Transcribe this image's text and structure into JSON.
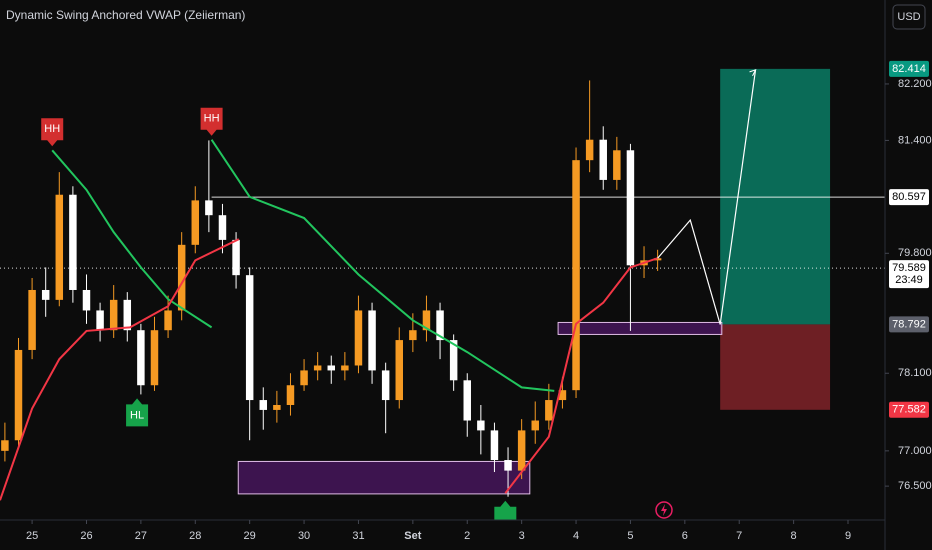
{
  "chart_data": {
    "type": "candlestick",
    "title": "Dynamic Swing Anchored VWAP (Zeiierman)",
    "currency": "USD",
    "xlim": [
      -0.59,
      15.68
    ],
    "ylim": [
      76.02,
      83.39
    ],
    "xticks": [
      {
        "value": 0,
        "label": "25"
      },
      {
        "value": 1,
        "label": "26"
      },
      {
        "value": 2,
        "label": "27"
      },
      {
        "value": 3,
        "label": "28"
      },
      {
        "value": 4,
        "label": "29"
      },
      {
        "value": 5,
        "label": "30"
      },
      {
        "value": 6,
        "label": "31"
      },
      {
        "value": 7,
        "label": "Set"
      },
      {
        "value": 8,
        "label": "2"
      },
      {
        "value": 9,
        "label": "3"
      },
      {
        "value": 10,
        "label": "4"
      },
      {
        "value": 11,
        "label": "5"
      },
      {
        "value": 12,
        "label": "6"
      },
      {
        "value": 13,
        "label": "7"
      },
      {
        "value": 14,
        "label": "8"
      },
      {
        "value": 15,
        "label": "9"
      }
    ],
    "yticks": [
      {
        "value": 82.2,
        "label": "82.200"
      },
      {
        "value": 81.4,
        "label": "81.400"
      },
      {
        "value": 79.8,
        "label": "79.800"
      },
      {
        "value": 78.1,
        "label": "78.100"
      },
      {
        "value": 77,
        "label": "77.000"
      },
      {
        "value": 76.5,
        "label": "76.500"
      }
    ],
    "up_color": "#f59a23",
    "down_color": "#ffffff",
    "candles": {
      "x": [
        -0.5,
        -0.25,
        0,
        0.25,
        0.5,
        0.75,
        1,
        1.25,
        1.5,
        1.75,
        2,
        2.25,
        2.5,
        2.75,
        3,
        3.25,
        3.5,
        3.75,
        4,
        4.25,
        4.5,
        4.75,
        5,
        5.25,
        5.5,
        5.75,
        6,
        6.25,
        6.5,
        6.75,
        7,
        7.25,
        7.5,
        7.75,
        8,
        8.25,
        8.5,
        8.75,
        9,
        9.25,
        9.5,
        9.75,
        10,
        10.25,
        10.5,
        10.75,
        11,
        11.25,
        11.5
      ],
      "open": [
        77.0,
        77.15,
        78.43,
        79.28,
        79.14,
        80.63,
        79.28,
        78.99,
        78.71,
        79.14,
        78.71,
        77.93,
        78.71,
        78.99,
        79.92,
        80.55,
        80.34,
        79.99,
        79.49,
        77.72,
        77.58,
        77.65,
        77.93,
        78.14,
        78.21,
        78.14,
        78.21,
        78.99,
        78.14,
        77.72,
        78.57,
        78.71,
        78.99,
        78.57,
        78.0,
        77.43,
        77.29,
        76.87,
        76.72,
        77.29,
        77.43,
        77.72,
        77.86,
        81.12,
        81.41,
        80.84,
        81.26,
        79.63,
        79.7
      ],
      "high": [
        77.4,
        78.6,
        79.45,
        79.6,
        80.95,
        80.75,
        79.5,
        79.1,
        79.35,
        79.25,
        78.8,
        78.9,
        79.2,
        80.1,
        80.75,
        81.4,
        80.5,
        80.1,
        79.6,
        77.9,
        77.85,
        78.1,
        78.3,
        78.4,
        78.35,
        78.4,
        79.2,
        79.1,
        78.25,
        78.75,
        78.95,
        79.2,
        79.1,
        78.65,
        78.1,
        77.65,
        77.4,
        77.05,
        77.45,
        77.7,
        77.95,
        78.05,
        81.3,
        82.25,
        81.6,
        81.45,
        81.35,
        79.9,
        79.85
      ],
      "low": [
        76.85,
        77.05,
        78.3,
        78.9,
        79.05,
        79.1,
        78.8,
        78.55,
        78.6,
        78.55,
        77.8,
        77.85,
        78.6,
        78.85,
        79.8,
        80.1,
        79.8,
        79.3,
        77.15,
        77.3,
        77.4,
        77.5,
        77.85,
        78.0,
        77.95,
        78.0,
        78.1,
        77.95,
        77.25,
        77.6,
        78.4,
        78.55,
        78.3,
        77.85,
        77.2,
        76.95,
        76.7,
        76.35,
        76.6,
        77.1,
        77.3,
        77.6,
        77.75,
        80.95,
        80.7,
        80.7,
        78.7,
        79.45,
        79.55
      ],
      "close": [
        77.15,
        78.43,
        79.28,
        79.14,
        80.63,
        79.28,
        78.99,
        78.71,
        79.14,
        78.71,
        77.93,
        78.71,
        78.99,
        79.92,
        80.55,
        80.34,
        79.99,
        79.49,
        77.72,
        77.58,
        77.65,
        77.93,
        78.14,
        78.21,
        78.14,
        78.21,
        78.99,
        78.14,
        77.72,
        78.57,
        78.71,
        78.99,
        78.57,
        78.0,
        77.43,
        77.29,
        76.87,
        76.72,
        77.29,
        77.43,
        77.72,
        77.86,
        81.12,
        81.41,
        80.84,
        81.26,
        79.63,
        79.7,
        79.73
      ]
    },
    "lines": [
      {
        "color": "#22c55e",
        "x": [
          0.37,
          1,
          1.5,
          2,
          2.5,
          3.3
        ],
        "values": [
          81.26,
          80.7,
          80.1,
          79.6,
          79.15,
          78.75
        ]
      },
      {
        "color": "#22c55e",
        "x": [
          3.3,
          4,
          5,
          6,
          7,
          8,
          9,
          9.6
        ],
        "values": [
          81.41,
          80.6,
          80.3,
          79.5,
          78.85,
          78.4,
          77.9,
          77.85
        ]
      },
      {
        "color": "#f23645",
        "x": [
          -0.59,
          0,
          0.5,
          1,
          1.8,
          2.5,
          3,
          3.8
        ],
        "values": [
          76.3,
          77.6,
          78.3,
          78.7,
          78.75,
          79.05,
          79.7,
          80.0
        ]
      },
      {
        "color": "#f23645",
        "x": [
          8.7,
          9.5,
          10,
          10.5,
          11,
          11.5
        ],
        "values": [
          76.4,
          77.2,
          78.8,
          79.1,
          79.6,
          79.73
        ]
      }
    ],
    "zones": [
      {
        "x": [
          3.79,
          9.15
        ],
        "y": [
          76.39,
          76.85
        ],
        "color": "#7b1fa2"
      },
      {
        "x": [
          9.67,
          12.68
        ],
        "y": [
          78.65,
          78.82
        ],
        "color": "#7b1fa2"
      }
    ],
    "pivots": [
      {
        "label": "HH",
        "x": 0.37,
        "y": 81.26,
        "color": "#d32f2f",
        "side": "above"
      },
      {
        "label": "HH",
        "x": 3.3,
        "y": 81.41,
        "color": "#d32f2f",
        "side": "above"
      },
      {
        "label": "HL",
        "x": 1.93,
        "y": 77.8,
        "color": "#16a34a",
        "side": "below"
      },
      {
        "x": 8.7,
        "y": 76.35,
        "color": "#16a34a",
        "side": "below"
      }
    ],
    "projection": {
      "x": [
        11.5,
        12.1,
        12.65,
        13.3
      ],
      "values": [
        79.73,
        80.27,
        78.792,
        82.4
      ]
    },
    "position": {
      "x": [
        12.65,
        14.67
      ],
      "target": 82.414,
      "entry": 78.792,
      "stop": 77.582,
      "target_color": "#0a6b57",
      "stop_color": "#6e1f24"
    },
    "price_tags": [
      {
        "value": 82.414,
        "color": "#089981",
        "text_color": "#ffffff"
      },
      {
        "value": 80.597,
        "color": "#ffffff",
        "text_color": "#000000",
        "line": "solid",
        "from_x": 3.3
      },
      {
        "value": 79.589,
        "color": "#ffffff",
        "text_color": "#000000",
        "line": "dotted",
        "countdown": "23:49"
      },
      {
        "value": 78.792,
        "color": "#5d606b",
        "text_color": "#ffffff"
      },
      {
        "value": 77.582,
        "color": "#f23645",
        "text_color": "#ffffff"
      }
    ]
  }
}
